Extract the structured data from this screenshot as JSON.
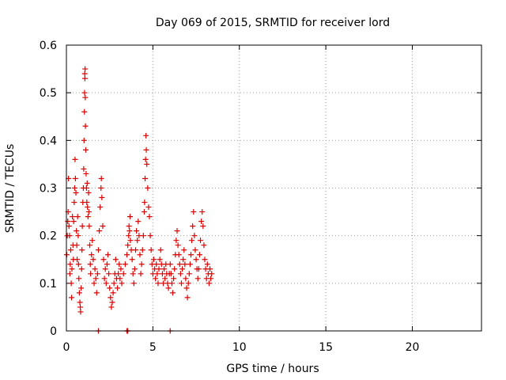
{
  "chart_data": {
    "type": "scatter",
    "title": "Day 069 of 2015, SRMTID for receiver lord",
    "xlabel": "GPS time / hours",
    "ylabel": "SRMTID / TECUs",
    "xlim": [
      0,
      24
    ],
    "ylim": [
      0,
      0.6
    ],
    "xticks": [
      0,
      5,
      10,
      15,
      20
    ],
    "xtick_labels": [
      "0",
      "5",
      "10",
      "15",
      "20"
    ],
    "yticks": [
      0,
      0.1,
      0.2,
      0.3,
      0.4,
      0.5,
      0.6
    ],
    "ytick_labels": [
      "0",
      "0.1",
      "0.2",
      "0.3",
      "0.4",
      "0.5",
      "0.6"
    ],
    "grid": true,
    "marker": "+",
    "color": "#dd0000",
    "series": [
      {
        "name": "SRMTID",
        "points": [
          [
            0.02,
            0.16
          ],
          [
            0.05,
            0.2
          ],
          [
            0.08,
            0.23
          ],
          [
            0.1,
            0.25
          ],
          [
            0.12,
            0.32
          ],
          [
            0.15,
            0.22
          ],
          [
            0.18,
            0.2
          ],
          [
            0.2,
            0.12
          ],
          [
            0.22,
            0.14
          ],
          [
            0.25,
            0.17
          ],
          [
            0.28,
            0.1
          ],
          [
            0.3,
            0.07
          ],
          [
            0.32,
            0.13
          ],
          [
            0.35,
            0.24
          ],
          [
            0.38,
            0.18
          ],
          [
            0.4,
            0.15
          ],
          [
            0.42,
            0.23
          ],
          [
            0.45,
            0.27
          ],
          [
            0.48,
            0.3
          ],
          [
            0.5,
            0.36
          ],
          [
            0.52,
            0.32
          ],
          [
            0.55,
            0.29
          ],
          [
            0.58,
            0.21
          ],
          [
            0.6,
            0.18
          ],
          [
            0.62,
            0.15
          ],
          [
            0.65,
            0.24
          ],
          [
            0.68,
            0.2
          ],
          [
            0.7,
            0.14
          ],
          [
            0.72,
            0.11
          ],
          [
            0.75,
            0.08
          ],
          [
            0.78,
            0.06
          ],
          [
            0.8,
            0.05
          ],
          [
            0.82,
            0.04
          ],
          [
            0.85,
            0.09
          ],
          [
            0.88,
            0.13
          ],
          [
            0.9,
            0.17
          ],
          [
            0.92,
            0.22
          ],
          [
            0.95,
            0.27
          ],
          [
            0.98,
            0.3
          ],
          [
            1.0,
            0.34
          ],
          [
            1.02,
            0.4
          ],
          [
            1.04,
            0.46
          ],
          [
            1.05,
            0.5
          ],
          [
            1.06,
            0.54
          ],
          [
            1.07,
            0.53
          ],
          [
            1.08,
            0.55
          ],
          [
            1.09,
            0.49
          ],
          [
            1.1,
            0.43
          ],
          [
            1.12,
            0.38
          ],
          [
            1.14,
            0.33
          ],
          [
            1.16,
            0.3
          ],
          [
            1.18,
            0.27
          ],
          [
            1.2,
            0.31
          ],
          [
            1.22,
            0.26
          ],
          [
            1.25,
            0.24
          ],
          [
            1.28,
            0.29
          ],
          [
            1.3,
            0.25
          ],
          [
            1.32,
            0.22
          ],
          [
            1.35,
            0.18
          ],
          [
            1.38,
            0.14
          ],
          [
            1.4,
            0.12
          ],
          [
            1.45,
            0.16
          ],
          [
            1.5,
            0.19
          ],
          [
            1.55,
            0.15
          ],
          [
            1.6,
            0.1
          ],
          [
            1.65,
            0.13
          ],
          [
            1.7,
            0.11
          ],
          [
            1.75,
            0.08
          ],
          [
            1.8,
            0.12
          ],
          [
            1.85,
            0.17
          ],
          [
            1.9,
            0.21
          ],
          [
            1.95,
            0.26
          ],
          [
            2.0,
            0.3
          ],
          [
            2.02,
            0.32
          ],
          [
            2.05,
            0.28
          ],
          [
            2.1,
            0.22
          ],
          [
            2.15,
            0.15
          ],
          [
            2.2,
            0.11
          ],
          [
            2.25,
            0.13
          ],
          [
            2.3,
            0.1
          ],
          [
            2.35,
            0.14
          ],
          [
            2.4,
            0.16
          ],
          [
            2.45,
            0.12
          ],
          [
            2.5,
            0.09
          ],
          [
            2.55,
            0.07
          ],
          [
            2.6,
            0.05
          ],
          [
            2.65,
            0.06
          ],
          [
            2.7,
            0.08
          ],
          [
            2.75,
            0.1
          ],
          [
            2.8,
            0.12
          ],
          [
            2.85,
            0.15
          ],
          [
            2.9,
            0.11
          ],
          [
            2.95,
            0.09
          ],
          [
            3.0,
            0.12
          ],
          [
            3.05,
            0.14
          ],
          [
            3.1,
            0.11
          ],
          [
            3.15,
            0.13
          ],
          [
            3.2,
            0.1
          ],
          [
            3.3,
            0.12
          ],
          [
            3.4,
            0.14
          ],
          [
            3.5,
            0.16
          ],
          [
            3.55,
            0.18
          ],
          [
            3.6,
            0.2
          ],
          [
            3.62,
            0.22
          ],
          [
            3.65,
            0.21
          ],
          [
            3.68,
            0.24
          ],
          [
            3.7,
            0.19
          ],
          [
            3.75,
            0.17
          ],
          [
            3.8,
            0.15
          ],
          [
            3.85,
            0.12
          ],
          [
            3.9,
            0.1
          ],
          [
            3.95,
            0.13
          ],
          [
            4.0,
            0.17
          ],
          [
            4.05,
            0.21
          ],
          [
            4.1,
            0.19
          ],
          [
            4.15,
            0.23
          ],
          [
            4.2,
            0.2
          ],
          [
            4.25,
            0.16
          ],
          [
            4.3,
            0.12
          ],
          [
            4.35,
            0.14
          ],
          [
            4.4,
            0.17
          ],
          [
            4.45,
            0.2
          ],
          [
            4.5,
            0.25
          ],
          [
            4.52,
            0.27
          ],
          [
            4.55,
            0.32
          ],
          [
            4.58,
            0.36
          ],
          [
            4.6,
            0.41
          ],
          [
            4.62,
            0.38
          ],
          [
            4.65,
            0.35
          ],
          [
            4.7,
            0.3
          ],
          [
            4.75,
            0.26
          ],
          [
            4.8,
            0.24
          ],
          [
            4.85,
            0.2
          ],
          [
            4.9,
            0.17
          ],
          [
            4.95,
            0.14
          ],
          [
            5.0,
            0.12
          ],
          [
            5.05,
            0.15
          ],
          [
            5.1,
            0.13
          ],
          [
            5.15,
            0.11
          ],
          [
            5.2,
            0.14
          ],
          [
            5.25,
            0.12
          ],
          [
            5.3,
            0.1
          ],
          [
            5.35,
            0.13
          ],
          [
            5.4,
            0.15
          ],
          [
            5.45,
            0.17
          ],
          [
            5.5,
            0.14
          ],
          [
            5.55,
            0.12
          ],
          [
            5.6,
            0.1
          ],
          [
            5.65,
            0.13
          ],
          [
            5.7,
            0.11
          ],
          [
            5.75,
            0.14
          ],
          [
            5.8,
            0.12
          ],
          [
            5.85,
            0.1
          ],
          [
            5.9,
            0.09
          ],
          [
            5.95,
            0.12
          ],
          [
            6.0,
            0.14
          ],
          [
            6.05,
            0.12
          ],
          [
            6.1,
            0.1
          ],
          [
            6.15,
            0.08
          ],
          [
            6.2,
            0.11
          ],
          [
            6.25,
            0.13
          ],
          [
            6.3,
            0.16
          ],
          [
            6.35,
            0.19
          ],
          [
            6.4,
            0.21
          ],
          [
            6.45,
            0.18
          ],
          [
            6.5,
            0.16
          ],
          [
            6.55,
            0.14
          ],
          [
            6.6,
            0.12
          ],
          [
            6.65,
            0.1
          ],
          [
            6.7,
            0.13
          ],
          [
            6.75,
            0.15
          ],
          [
            6.8,
            0.17
          ],
          [
            6.85,
            0.14
          ],
          [
            6.9,
            0.11
          ],
          [
            6.95,
            0.09
          ],
          [
            7.0,
            0.07
          ],
          [
            7.05,
            0.1
          ],
          [
            7.1,
            0.12
          ],
          [
            7.15,
            0.14
          ],
          [
            7.2,
            0.16
          ],
          [
            7.25,
            0.19
          ],
          [
            7.3,
            0.22
          ],
          [
            7.35,
            0.25
          ],
          [
            7.4,
            0.2
          ],
          [
            7.45,
            0.17
          ],
          [
            7.5,
            0.15
          ],
          [
            7.55,
            0.13
          ],
          [
            7.6,
            0.11
          ],
          [
            7.65,
            0.13
          ],
          [
            7.7,
            0.16
          ],
          [
            7.75,
            0.19
          ],
          [
            7.8,
            0.23
          ],
          [
            7.85,
            0.25
          ],
          [
            7.9,
            0.22
          ],
          [
            7.95,
            0.18
          ],
          [
            8.0,
            0.15
          ],
          [
            8.05,
            0.13
          ],
          [
            8.1,
            0.11
          ],
          [
            8.15,
            0.14
          ],
          [
            8.2,
            0.12
          ],
          [
            8.25,
            0.1
          ],
          [
            8.3,
            0.13
          ],
          [
            8.35,
            0.11
          ],
          [
            8.4,
            0.12
          ],
          [
            1.85,
            0.0
          ],
          [
            3.5,
            0.0
          ],
          [
            3.55,
            0.0
          ],
          [
            6.0,
            0.0
          ]
        ]
      }
    ]
  }
}
